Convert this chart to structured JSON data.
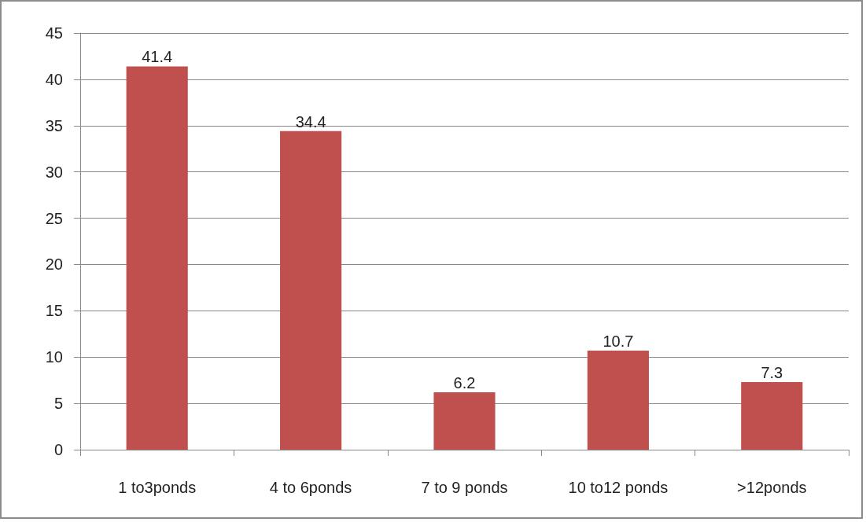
{
  "chart_data": {
    "type": "bar",
    "categories": [
      "1 to3ponds",
      "4 to 6ponds",
      "7 to 9 ponds",
      "10 to12 ponds",
      ">12ponds"
    ],
    "values": [
      41.4,
      34.4,
      6.2,
      10.7,
      7.3
    ],
    "color": "#c0504d",
    "ylim": [
      0,
      45
    ],
    "yticks": [
      0,
      5,
      10,
      15,
      20,
      25,
      30,
      35,
      40,
      45
    ],
    "grid": "y",
    "data_labels": true
  }
}
